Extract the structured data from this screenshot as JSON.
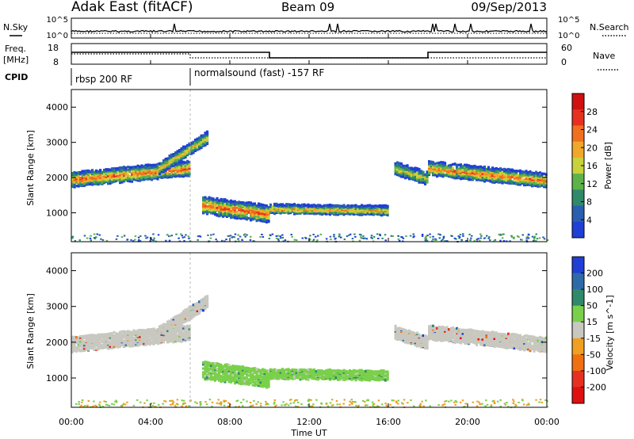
{
  "header": {
    "station": "Adak East (fitACF)",
    "beam": "Beam 09",
    "date": "09/Sep/2013"
  },
  "status_panels": {
    "nsky_label": "N.Sky",
    "nsearch_label": "N.Search",
    "noise_ticks_left": [
      "10^5",
      "10^0"
    ],
    "noise_ticks_right": [
      "10^5",
      "10^0"
    ],
    "freq_label_line1": "Freq.",
    "freq_label_line2": "[MHz]",
    "freq_ticks": [
      "18",
      "8"
    ],
    "nave_label": "Nave",
    "nave_ticks": [
      "60",
      "0"
    ],
    "cpid_label": "CPID",
    "cpid_segments": [
      {
        "label": "rbsp 200 RF",
        "start_hour": 0
      },
      {
        "label": "normalsound (fast) -157 RF",
        "start_hour": 6
      }
    ]
  },
  "chart_data": [
    {
      "type": "heatmap",
      "title": "",
      "xlabel": "Time UT",
      "ylabel": "Slant Range [km]",
      "xlim": [
        0,
        24
      ],
      "ylim": [
        180,
        4500
      ],
      "x_ticks": [
        "00:00",
        "04:00",
        "08:00",
        "12:00",
        "16:00",
        "20:00",
        "00:00"
      ],
      "y_ticks": [
        "1000",
        "2000",
        "3000",
        "4000"
      ],
      "colorbar": {
        "label": "Power [dB]",
        "ticks": [
          "4",
          "8",
          "12",
          "16",
          "20",
          "24",
          "28"
        ],
        "min": 0,
        "max": 32,
        "colors": [
          "#1f3fd6",
          "#2a5fb0",
          "#2e8a6a",
          "#5fb24a",
          "#c8d23a",
          "#f0a82a",
          "#f07020",
          "#e63020",
          "#d01010"
        ]
      },
      "echo_regions": [
        {
          "t": [
            0.0,
            6.0
          ],
          "range_center_start": 1980,
          "range_center_end": 2300,
          "half_width": 200,
          "peak_db": 26
        },
        {
          "t": [
            4.4,
            6.9
          ],
          "range_center_start": 2300,
          "range_center_end": 3200,
          "half_width": 160,
          "peak_db": 20
        },
        {
          "t": [
            6.6,
            10.0
          ],
          "range_center_start": 1250,
          "range_center_end": 1000,
          "half_width": 230,
          "peak_db": 27
        },
        {
          "t": [
            10.0,
            16.0
          ],
          "range_center_start": 1150,
          "range_center_end": 1100,
          "half_width": 120,
          "peak_db": 22
        },
        {
          "t": [
            16.3,
            18.0
          ],
          "range_center_start": 2300,
          "range_center_end": 2000,
          "half_width": 170,
          "peak_db": 18
        },
        {
          "t": [
            18.0,
            24.0
          ],
          "range_center_start": 2300,
          "range_center_end": 1950,
          "half_width": 190,
          "peak_db": 25
        }
      ]
    },
    {
      "type": "heatmap",
      "title": "",
      "xlabel": "Time UT",
      "ylabel": "Slant Range [km]",
      "xlim": [
        0,
        24
      ],
      "ylim": [
        180,
        4500
      ],
      "x_ticks": [
        "00:00",
        "04:00",
        "08:00",
        "12:00",
        "16:00",
        "20:00",
        "00:00"
      ],
      "y_ticks": [
        "1000",
        "2000",
        "3000",
        "4000"
      ],
      "colorbar": {
        "label": "Velocity [m s^-1]",
        "ticks": [
          "200",
          "100",
          "50",
          "15",
          "-15",
          "-50",
          "-100",
          "-200"
        ],
        "colors": [
          "#1f3fd6",
          "#2e6aa8",
          "#2e8a6a",
          "#7ad04a",
          "#c8c8c0",
          "#f0a020",
          "#f07010",
          "#e63020",
          "#e01010"
        ]
      },
      "echo_regions": [
        {
          "t": [
            0.0,
            6.0
          ],
          "range_center_start": 1980,
          "range_center_end": 2300,
          "half_width": 200,
          "class": "ground_scatter"
        },
        {
          "t": [
            4.4,
            6.9
          ],
          "range_center_start": 2300,
          "range_center_end": 3200,
          "half_width": 160,
          "class": "ground_scatter"
        },
        {
          "t": [
            6.6,
            10.0
          ],
          "range_center_start": 1250,
          "range_center_end": 1000,
          "half_width": 230,
          "class": "ionospheric_slow"
        },
        {
          "t": [
            10.0,
            16.0
          ],
          "range_center_start": 1150,
          "range_center_end": 1100,
          "half_width": 120,
          "class": "ionospheric_slow"
        },
        {
          "t": [
            16.3,
            18.0
          ],
          "range_center_start": 2300,
          "range_center_end": 2000,
          "half_width": 170,
          "class": "ground_scatter"
        },
        {
          "t": [
            18.0,
            24.0
          ],
          "range_center_start": 2300,
          "range_center_end": 1950,
          "half_width": 190,
          "class": "ground_scatter"
        }
      ]
    }
  ]
}
